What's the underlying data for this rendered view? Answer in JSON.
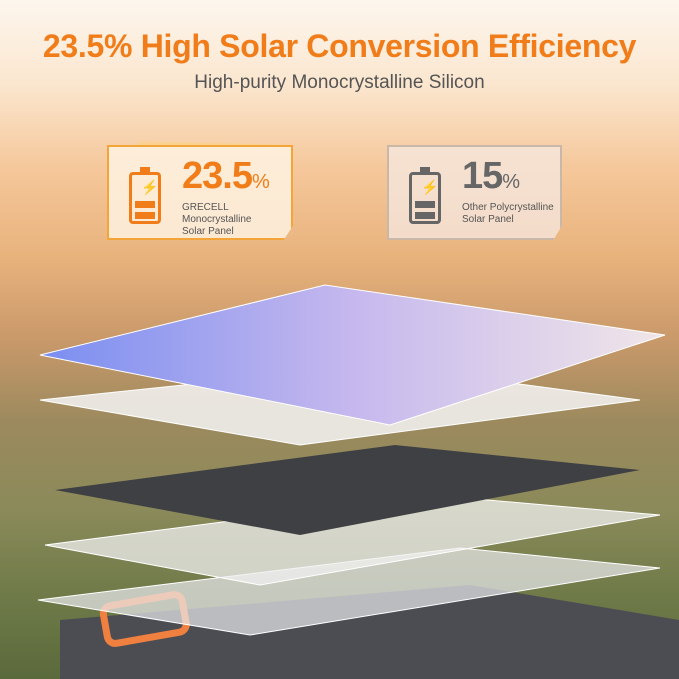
{
  "headline": "23.5% High Solar Conversion Efficiency",
  "subheadline": "High-purity Monocrystalline Silicon",
  "cards": [
    {
      "value": "23.5",
      "unit": "%",
      "label_lines": [
        "GRECELL",
        "Monocrystalline",
        "Solar Panel"
      ],
      "color": "#f07d1a",
      "icon": "battery-charging-icon"
    },
    {
      "value": "15",
      "unit": "%",
      "label_lines": [
        "Other Polycrystalline",
        "Solar Panel"
      ],
      "color": "#666666",
      "icon": "battery-charging-icon"
    }
  ]
}
